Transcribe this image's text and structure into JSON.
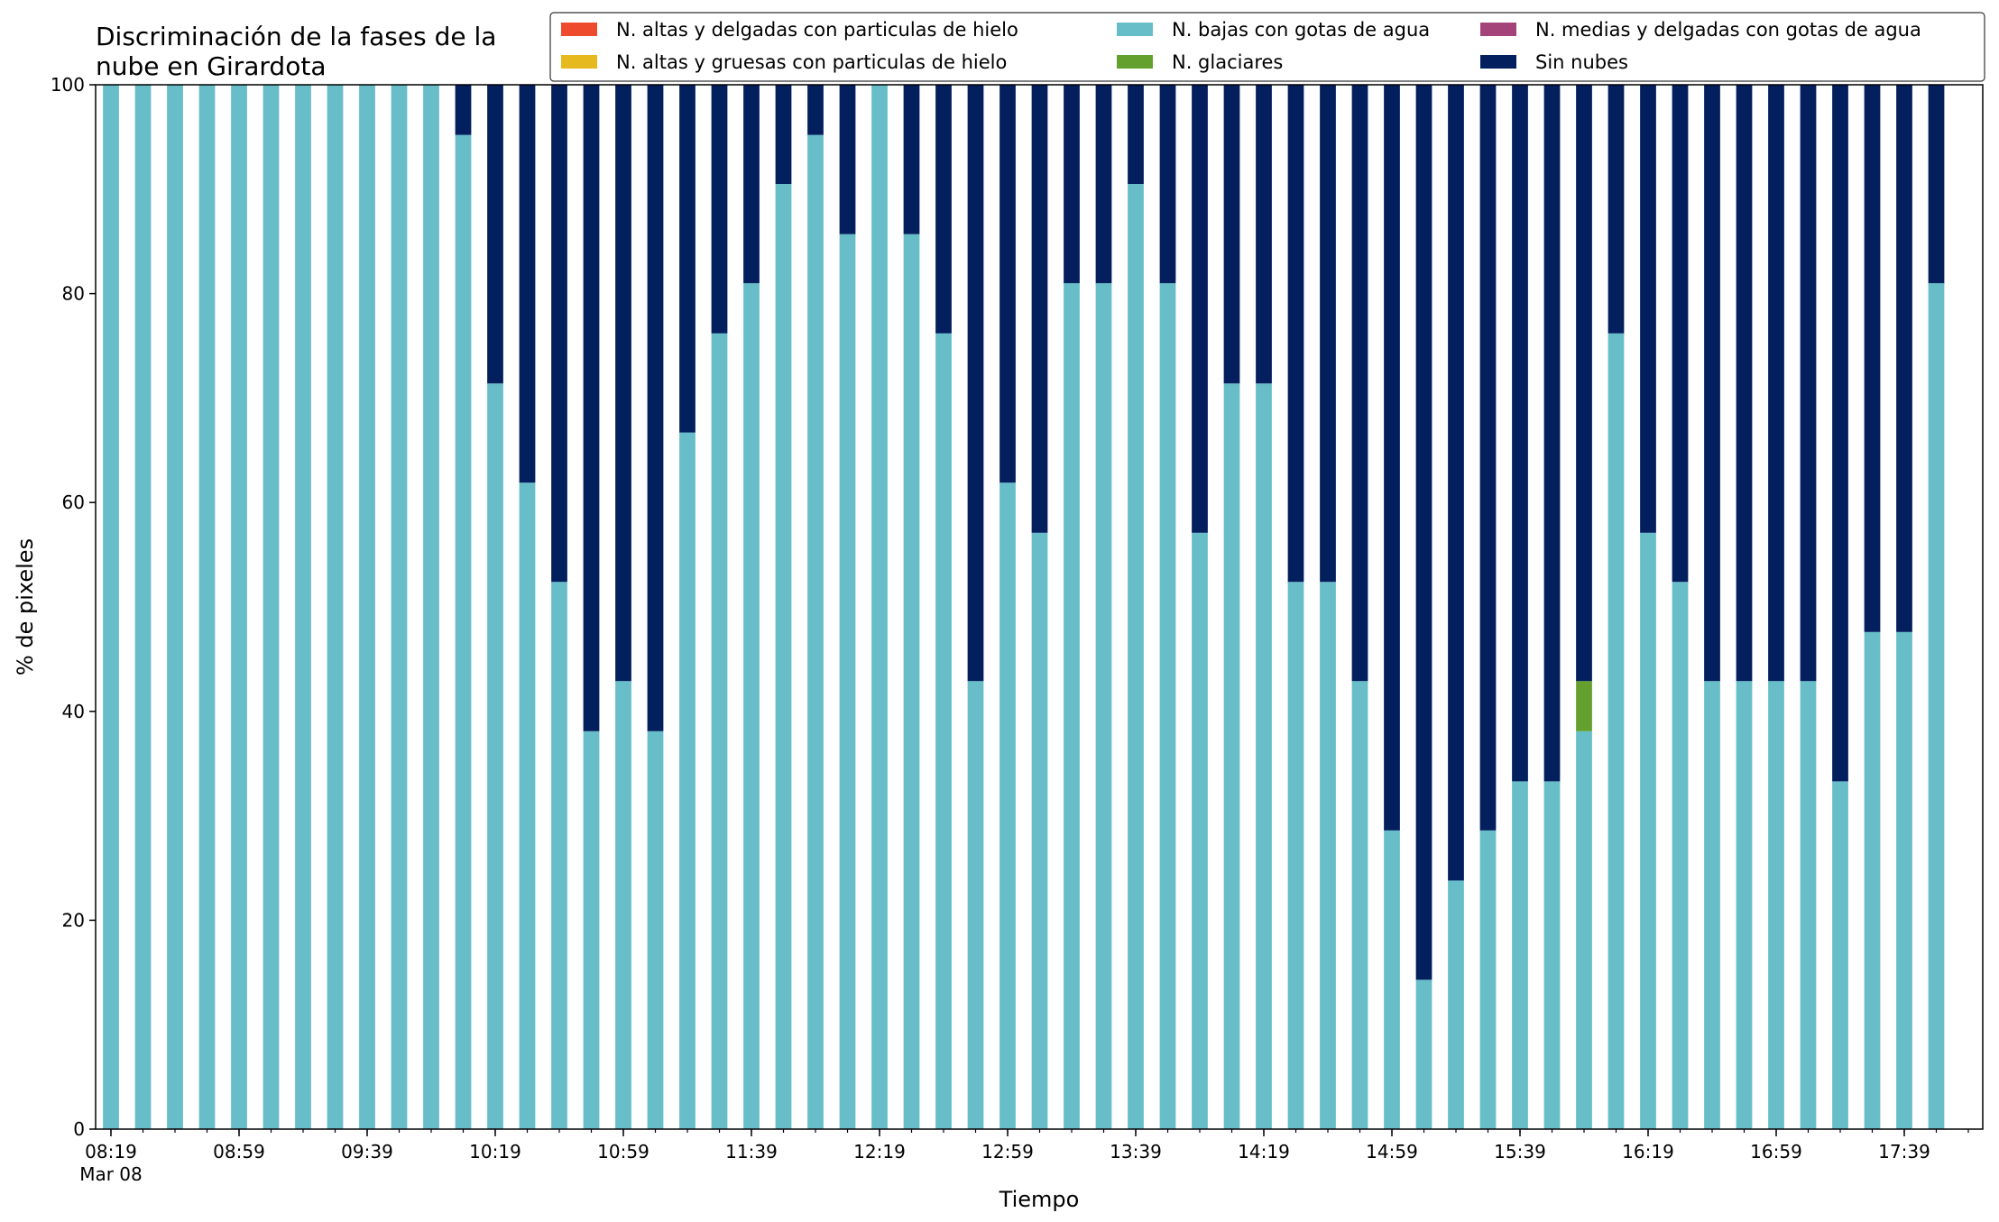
{
  "chart_data": {
    "type": "bar",
    "stacked": true,
    "title_lines": [
      "Discriminación de la fases de la",
      "nube en Girardota"
    ],
    "xlabel": "Tiempo",
    "ylabel": "% de pixeles",
    "ylim": [
      0,
      100
    ],
    "yticks": [
      0,
      20,
      40,
      60,
      80,
      100
    ],
    "grid": false,
    "legend_position": "top-right",
    "legend_columns": 3,
    "xtick_labels": [
      {
        "index": 0,
        "label": "08:19",
        "sublabel": "Mar 08"
      },
      {
        "index": 4,
        "label": "08:59"
      },
      {
        "index": 8,
        "label": "09:39"
      },
      {
        "index": 12,
        "label": "10:19"
      },
      {
        "index": 16,
        "label": "10:59"
      },
      {
        "index": 20,
        "label": "11:39"
      },
      {
        "index": 24,
        "label": "12:19"
      },
      {
        "index": 28,
        "label": "12:59"
      },
      {
        "index": 32,
        "label": "13:39"
      },
      {
        "index": 36,
        "label": "14:19"
      },
      {
        "index": 40,
        "label": "14:59"
      },
      {
        "index": 44,
        "label": "15:39"
      },
      {
        "index": 48,
        "label": "16:19"
      },
      {
        "index": 52,
        "label": "16:59"
      },
      {
        "index": 56,
        "label": "17:39"
      }
    ],
    "minor_tick_count": 59,
    "series": [
      {
        "name": "N. altas y delgadas con particulas de hielo",
        "color": "#ee4a2e",
        "values": [
          0,
          0,
          0,
          0,
          0,
          0,
          0,
          0,
          0,
          0,
          0,
          0,
          0,
          0,
          0,
          0,
          0,
          0,
          0,
          0,
          0,
          0,
          0,
          0,
          0,
          0,
          0,
          0,
          0,
          0,
          0,
          0,
          0,
          0,
          0,
          0,
          0,
          0,
          0,
          0,
          0,
          0,
          0,
          0,
          0,
          0,
          0,
          0,
          0,
          0,
          0,
          0,
          0,
          0,
          0,
          0,
          0,
          0
        ]
      },
      {
        "name": "N. altas y gruesas con particulas de hielo",
        "color": "#e6b91e",
        "values": [
          0,
          0,
          0,
          0,
          0,
          0,
          0,
          0,
          0,
          0,
          0,
          0,
          0,
          0,
          0,
          0,
          0,
          0,
          0,
          0,
          0,
          0,
          0,
          0,
          0,
          0,
          0,
          0,
          0,
          0,
          0,
          0,
          0,
          0,
          0,
          0,
          0,
          0,
          0,
          0,
          0,
          0,
          0,
          0,
          0,
          0,
          0,
          0,
          0,
          0,
          0,
          0,
          0,
          0,
          0,
          0,
          0,
          0
        ]
      },
      {
        "name": "N. bajas con gotas de agua",
        "color": "#67bec9",
        "values": [
          100,
          100,
          100,
          100,
          100,
          100,
          100,
          100,
          100,
          100,
          100,
          95.2,
          71.4,
          61.9,
          52.4,
          38.1,
          42.9,
          38.1,
          66.7,
          76.2,
          81.0,
          90.5,
          95.2,
          85.7,
          100,
          85.7,
          76.2,
          42.9,
          61.9,
          57.1,
          81.0,
          81.0,
          90.5,
          81.0,
          57.1,
          71.4,
          71.4,
          52.4,
          52.4,
          42.9,
          28.6,
          14.3,
          23.8,
          28.6,
          33.3,
          33.3,
          38.1,
          76.2,
          57.1,
          52.4,
          42.9,
          42.9,
          42.9,
          42.9,
          33.3,
          47.6,
          47.6,
          81.0
        ]
      },
      {
        "name": "N. glaciares",
        "color": "#64a02e",
        "values": [
          0,
          0,
          0,
          0,
          0,
          0,
          0,
          0,
          0,
          0,
          0,
          0,
          0,
          0,
          0,
          0,
          0,
          0,
          0,
          0,
          0,
          0,
          0,
          0,
          0,
          0,
          0,
          0,
          0,
          0,
          0,
          0,
          0,
          0,
          0,
          0,
          0,
          0,
          0,
          0,
          0,
          0,
          0,
          0,
          0,
          0,
          4.8,
          0,
          0,
          0,
          0,
          0,
          0,
          0,
          0,
          0,
          0,
          0
        ]
      },
      {
        "name": "N. medias y delgadas con gotas de agua",
        "color": "#a4437a",
        "values": [
          0,
          0,
          0,
          0,
          0,
          0,
          0,
          0,
          0,
          0,
          0,
          0,
          0,
          0,
          0,
          0,
          0,
          0,
          0,
          0,
          0,
          0,
          0,
          0,
          0,
          0,
          0,
          0,
          0,
          0,
          0,
          0,
          0,
          0,
          0,
          0,
          0,
          0,
          0,
          0,
          0,
          0,
          0,
          0,
          0,
          0,
          0,
          0,
          0,
          0,
          0,
          0,
          0,
          0,
          0,
          0,
          0,
          0
        ]
      },
      {
        "name": "Sin nubes",
        "color": "#031f5e",
        "values": [
          0,
          0,
          0,
          0,
          0,
          0,
          0,
          0,
          0,
          0,
          0,
          4.8,
          28.6,
          38.1,
          47.6,
          61.9,
          57.1,
          61.9,
          33.3,
          23.8,
          19.0,
          9.5,
          4.8,
          14.3,
          0,
          14.3,
          23.8,
          57.1,
          38.1,
          42.9,
          19.0,
          19.0,
          9.5,
          19.0,
          42.9,
          28.6,
          28.6,
          47.6,
          47.6,
          57.1,
          71.4,
          85.7,
          76.2,
          71.4,
          66.7,
          66.7,
          57.1,
          23.8,
          42.9,
          47.6,
          57.1,
          57.1,
          57.1,
          57.1,
          66.7,
          52.4,
          52.4,
          19.0
        ]
      }
    ]
  }
}
